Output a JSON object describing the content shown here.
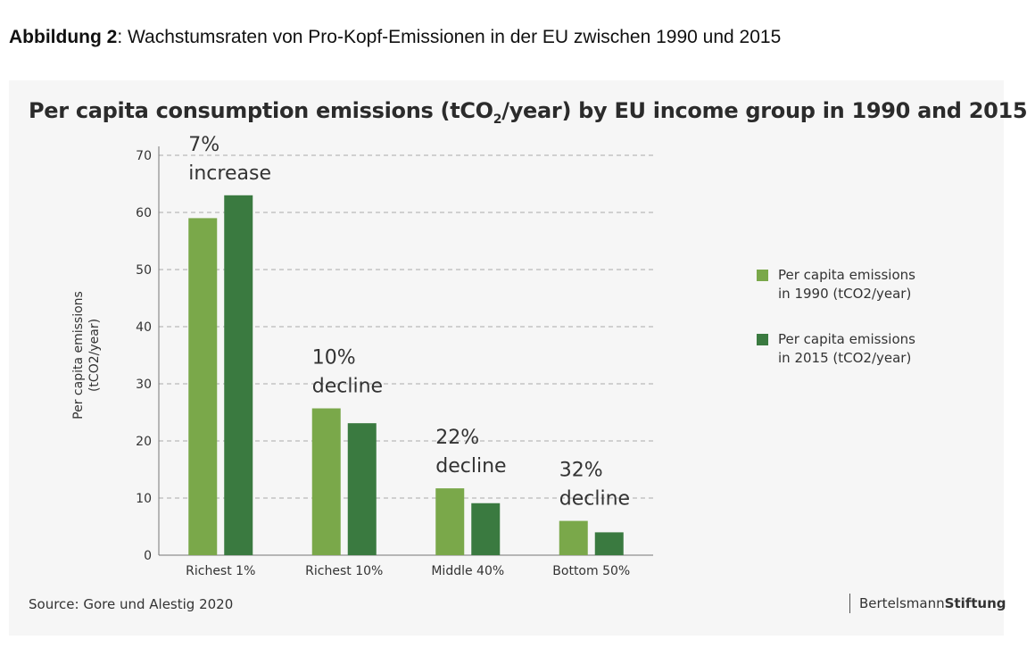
{
  "caption": {
    "prefix": "Abbildung 2",
    "text": ": Wachstumsraten von Pro-Kopf-Emissionen in der EU zwischen 1990 und 2015"
  },
  "chart_data": {
    "type": "bar",
    "title_parts": [
      "Per capita consumption emissions (tCO",
      "2",
      "/year) by EU income group in 1990 and 2015"
    ],
    "ylabel_lines": [
      "Per capita emissions",
      "(tCO2/year)"
    ],
    "ylim": [
      0,
      70
    ],
    "yticks": [
      0,
      10,
      20,
      30,
      40,
      50,
      60,
      70
    ],
    "grid": true,
    "legend_position": "right",
    "categories": [
      "Richest 1%",
      "Richest 10%",
      "Middle 40%",
      "Bottom 50%"
    ],
    "series": [
      {
        "name_lines": [
          "Per capita emissions",
          "in 1990 (tCO2/year)"
        ],
        "color": "#7aa84a",
        "values": [
          59,
          25.7,
          11.7,
          6.0
        ]
      },
      {
        "name_lines": [
          "Per capita emissions",
          "in 2015 (tCO2/year)"
        ],
        "color": "#3a7a40",
        "values": [
          63,
          23.1,
          9.1,
          4.0
        ]
      }
    ],
    "annotations": [
      {
        "category": 0,
        "lines": [
          "7%",
          "increase"
        ]
      },
      {
        "category": 1,
        "lines": [
          "10%",
          "decline"
        ]
      },
      {
        "category": 2,
        "lines": [
          "22%",
          "decline"
        ]
      },
      {
        "category": 3,
        "lines": [
          "32%",
          "decline"
        ]
      }
    ]
  },
  "footer": {
    "source": "Source: Gore und Alestig 2020",
    "brand_regular": "Bertelsmann",
    "brand_bold": "Stiftung"
  }
}
